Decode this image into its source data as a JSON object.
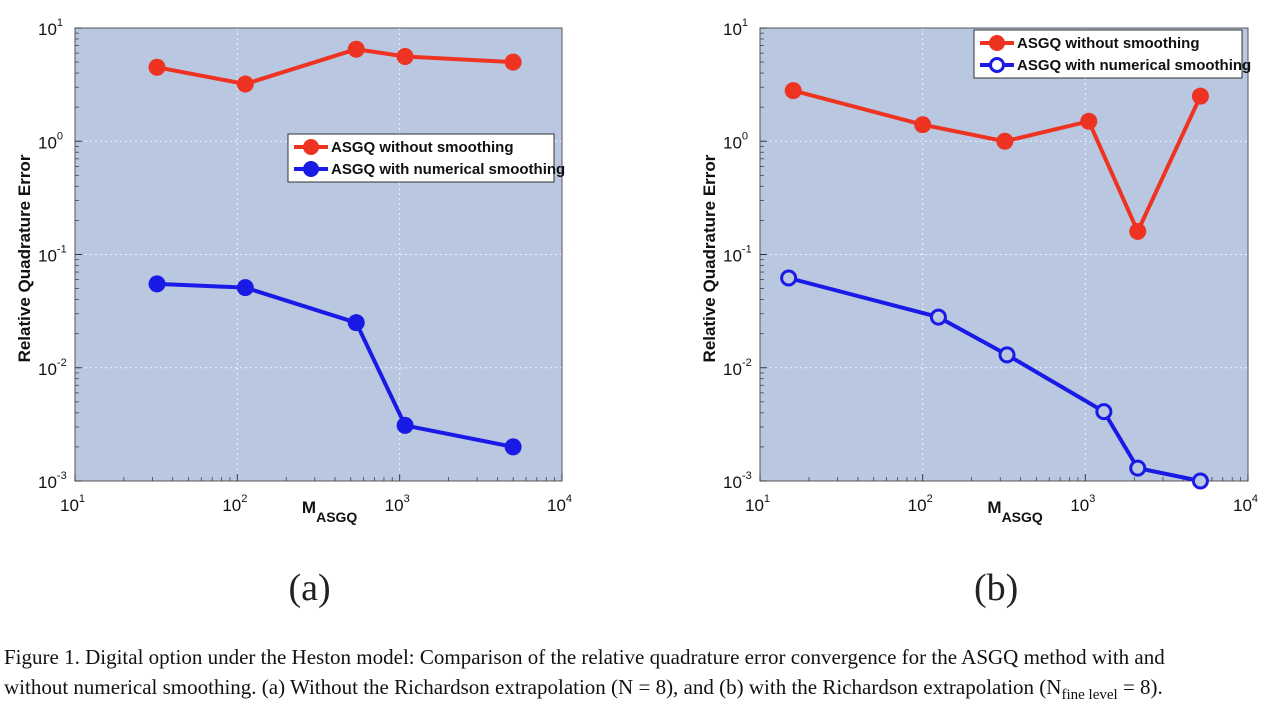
{
  "figure": {
    "caption_line1": "Figure 1.  Digital option under the Heston model: Comparison of the relative quadrature error convergence for the ASGQ method with and",
    "caption_line2": "without numerical smoothing. (a) Without the Richardson extrapolation (N = 8), and (b) with the Richardson extrapolation (N",
    "caption_sub": "fine level",
    "caption_end": " = 8)."
  },
  "colors": {
    "plot_bg": "#b9c7e0",
    "red": "#ee3322",
    "blue": "#1a1ae6",
    "grid": "#ffffff"
  },
  "chart_data": [
    {
      "type": "line",
      "panel_label": "(a)",
      "xlabel": "M",
      "xlabel_sub": "ASGQ",
      "ylabel": "Relative Quadrature Error",
      "xscale": "log",
      "yscale": "log",
      "xlim": [
        10,
        10000
      ],
      "ylim": [
        0.001,
        10
      ],
      "x_ticks": [
        {
          "base": "10",
          "exp": "1"
        },
        {
          "base": "10",
          "exp": "2"
        },
        {
          "base": "10",
          "exp": "3"
        },
        {
          "base": "10",
          "exp": "4"
        }
      ],
      "y_ticks": [
        {
          "base": "10",
          "exp": "-3"
        },
        {
          "base": "10",
          "exp": "-2"
        },
        {
          "base": "10",
          "exp": "-1"
        },
        {
          "base": "10",
          "exp": "0"
        },
        {
          "base": "10",
          "exp": "1"
        }
      ],
      "grid": true,
      "legend_position": "center-right",
      "series": [
        {
          "name": "ASGQ without smoothing",
          "color": "red",
          "marker": "filled",
          "x": [
            32,
            112,
            540,
            1080,
            5000
          ],
          "y": [
            4.5,
            3.2,
            6.5,
            5.6,
            5.0
          ]
        },
        {
          "name": "ASGQ with numerical smoothing",
          "color": "blue",
          "marker": "filled",
          "x": [
            32,
            112,
            540,
            1080,
            5000
          ],
          "y": [
            0.055,
            0.051,
            0.025,
            0.0031,
            0.002
          ]
        }
      ]
    },
    {
      "type": "line",
      "panel_label": "(b)",
      "xlabel": "M",
      "xlabel_sub": "ASGQ",
      "ylabel": "Relative Quadrature Error",
      "xscale": "log",
      "yscale": "log",
      "xlim": [
        10,
        10000
      ],
      "ylim": [
        0.001,
        10
      ],
      "x_ticks": [
        {
          "base": "10",
          "exp": "1"
        },
        {
          "base": "10",
          "exp": "2"
        },
        {
          "base": "10",
          "exp": "3"
        },
        {
          "base": "10",
          "exp": "4"
        }
      ],
      "y_ticks": [
        {
          "base": "10",
          "exp": "-3"
        },
        {
          "base": "10",
          "exp": "-2"
        },
        {
          "base": "10",
          "exp": "-1"
        },
        {
          "base": "10",
          "exp": "0"
        },
        {
          "base": "10",
          "exp": "1"
        }
      ],
      "grid": true,
      "legend_position": "top-right",
      "series": [
        {
          "name": "ASGQ without smoothing",
          "color": "red",
          "marker": "filled",
          "x": [
            16,
            100,
            320,
            1050,
            2100,
            5100
          ],
          "y": [
            2.8,
            1.4,
            1.0,
            1.5,
            0.16,
            2.5
          ]
        },
        {
          "name": "ASGQ with numerical smoothing",
          "color": "blue",
          "marker": "open",
          "x": [
            15,
            125,
            330,
            1300,
            2100,
            5100
          ],
          "y": [
            0.062,
            0.028,
            0.013,
            0.0041,
            0.0013,
            0.001
          ]
        }
      ]
    }
  ]
}
